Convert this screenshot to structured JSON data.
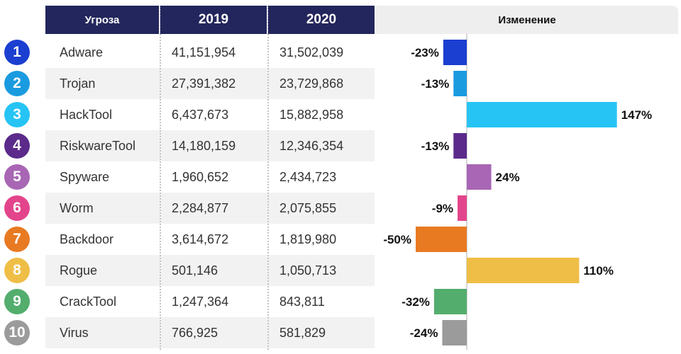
{
  "header": {
    "threat_label": "Угроза",
    "year1_label": "2019",
    "year2_label": "2020",
    "change_label": "Изменение"
  },
  "colors": {
    "header_bg": "#23265c",
    "change_header_bg": "#eeeeee",
    "row_alt_bg": "#f2f2f2"
  },
  "rows": [
    {
      "rank": "1",
      "name": "Adware",
      "v2019": "41,151,954",
      "v2020": "31,502,039",
      "change_label": "-23%",
      "color": "#1b3fd0"
    },
    {
      "rank": "2",
      "name": "Trojan",
      "v2019": "27,391,382",
      "v2020": "23,729,868",
      "change_label": "-13%",
      "color": "#1a9be0"
    },
    {
      "rank": "3",
      "name": "HackTool",
      "v2019": "6,437,673",
      "v2020": "15,882,958",
      "change_label": "147%",
      "color": "#26c4f4"
    },
    {
      "rank": "4",
      "name": "RiskwareTool",
      "v2019": "14,180,159",
      "v2020": "12,346,354",
      "change_label": "-13%",
      "color": "#5b2a8a"
    },
    {
      "rank": "5",
      "name": "Spyware",
      "v2019": "1,960,652",
      "v2020": "2,434,723",
      "change_label": "24%",
      "color": "#a866b4"
    },
    {
      "rank": "6",
      "name": "Worm",
      "v2019": "2,284,877",
      "v2020": "2,075,855",
      "change_label": "-9%",
      "color": "#e3458c"
    },
    {
      "rank": "7",
      "name": "Backdoor",
      "v2019": "3,614,672",
      "v2020": "1,819,980",
      "change_label": "-50%",
      "color": "#e87a22"
    },
    {
      "rank": "8",
      "name": "Rogue",
      "v2019": "501,146",
      "v2020": "1,050,713",
      "change_label": "110%",
      "color": "#efbe46"
    },
    {
      "rank": "9",
      "name": "CrackTool",
      "v2019": "1,247,364",
      "v2020": "843,811",
      "change_label": "-32%",
      "color": "#53ad6d"
    },
    {
      "rank": "10",
      "name": "Virus",
      "v2019": "766,925",
      "v2020": "581,829",
      "change_label": "-24%",
      "color": "#9b9b9b"
    }
  ],
  "chart_data": {
    "type": "bar",
    "orientation": "horizontal",
    "title": "Изменение",
    "categories": [
      "Adware",
      "Trojan",
      "HackTool",
      "RiskwareTool",
      "Spyware",
      "Worm",
      "Backdoor",
      "Rogue",
      "CrackTool",
      "Virus"
    ],
    "values": [
      -23,
      -13,
      147,
      -13,
      24,
      -9,
      -50,
      110,
      -32,
      -24
    ],
    "unit": "%",
    "colors": [
      "#1b3fd0",
      "#1a9be0",
      "#26c4f4",
      "#5b2a8a",
      "#a866b4",
      "#e3458c",
      "#e87a22",
      "#efbe46",
      "#53ad6d",
      "#9b9b9b"
    ]
  }
}
